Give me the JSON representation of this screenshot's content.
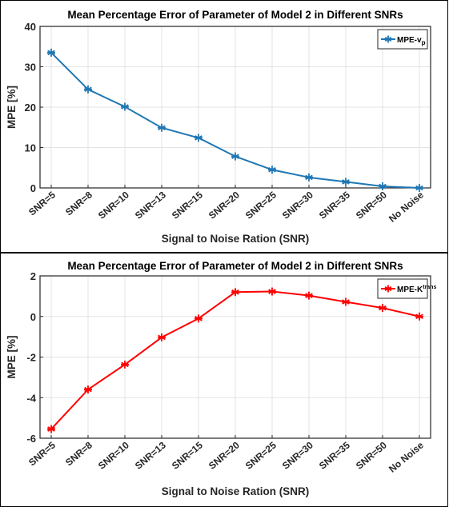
{
  "chart_data": [
    {
      "type": "line",
      "title": "Mean Percentage Error of Parameter of Model 2 in Different SNRs",
      "xlabel": "Signal to Noise Ration (SNR)",
      "ylabel": "MPE [%]",
      "categories": [
        "SNR=5",
        "SNR=8",
        "SNR=10",
        "SNR=13",
        "SNR=15",
        "SNR=20",
        "SNR=25",
        "SNR=30",
        "SNR=35",
        "SNR=50",
        "No Noise"
      ],
      "ylim": [
        0,
        40
      ],
      "yticks": [
        0,
        10,
        20,
        30,
        40
      ],
      "grid": true,
      "legend_position": "top-right",
      "series": [
        {
          "name": "MPE-v",
          "name_subscript": "p",
          "color": "#1f77b4",
          "marker": "asterisk",
          "values": [
            33.5,
            24.4,
            20.1,
            14.9,
            12.4,
            7.8,
            4.5,
            2.6,
            1.5,
            0.4,
            0.0
          ]
        }
      ]
    },
    {
      "type": "line",
      "title": "Mean Percentage Error of Parameter of Model 2 in Different SNRs",
      "xlabel": "Signal to Noise Ration (SNR)",
      "ylabel": "MPE [%]",
      "categories": [
        "SNR=5",
        "SNR=8",
        "SNR=10",
        "SNR=13",
        "SNR=15",
        "SNR=20",
        "SNR=25",
        "SNR=30",
        "SNR=35",
        "SNR=50",
        "No Noise"
      ],
      "ylim": [
        -6,
        2
      ],
      "yticks": [
        -6,
        -4,
        -2,
        0,
        2
      ],
      "grid": true,
      "legend_position": "top-right",
      "series": [
        {
          "name": "MPE-K",
          "name_superscript": "trans",
          "color": "#ff0000",
          "marker": "asterisk",
          "values": [
            -5.55,
            -3.6,
            -2.37,
            -1.03,
            -0.1,
            1.2,
            1.23,
            1.03,
            0.72,
            0.42,
            0.0
          ]
        }
      ]
    }
  ]
}
